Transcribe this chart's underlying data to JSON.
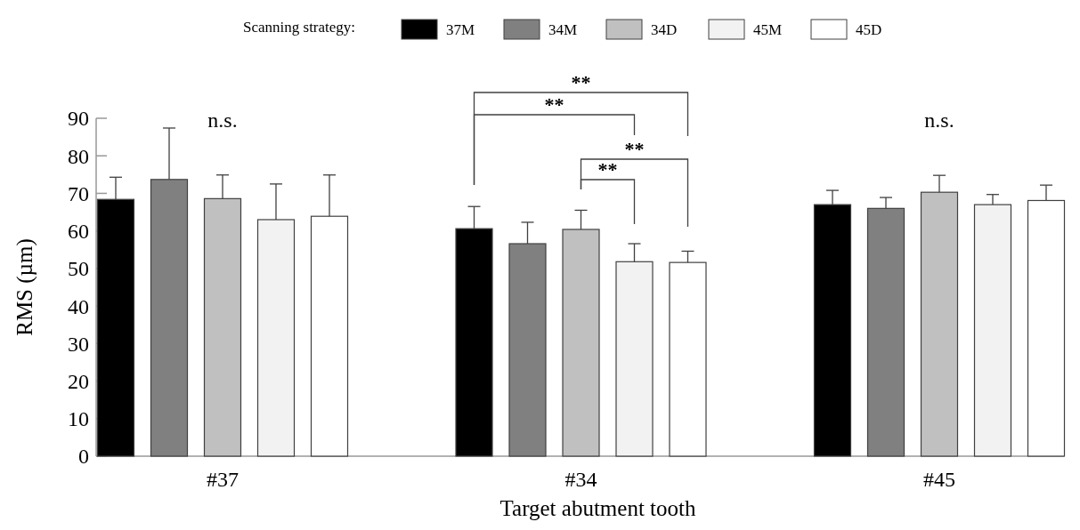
{
  "chart_data": {
    "type": "bar",
    "xlabel": "Target abutment tooth",
    "ylabel": "RMS (µm)",
    "legend_title": "Scanning strategy:",
    "legend": "top",
    "categories": [
      "#37",
      "#34",
      "#45"
    ],
    "ylim": [
      0,
      90
    ],
    "yticks": [
      0,
      10,
      20,
      30,
      40,
      50,
      60,
      70,
      80,
      90
    ],
    "grid": false,
    "series": [
      {
        "name": "37M",
        "color": "#000000",
        "values": [
          68.4,
          60.6,
          67.0
        ],
        "errors": [
          5.9,
          5.9,
          3.8
        ]
      },
      {
        "name": "34M",
        "color": "#808080",
        "values": [
          73.7,
          56.6,
          66.0
        ],
        "errors": [
          13.7,
          5.7,
          2.9
        ]
      },
      {
        "name": "34D",
        "color": "#c0c0c0",
        "values": [
          68.6,
          60.4,
          70.3
        ],
        "errors": [
          6.3,
          5.1,
          4.5
        ]
      },
      {
        "name": "45M",
        "color": "#f2f2f2",
        "values": [
          63.0,
          51.8,
          67.0
        ],
        "errors": [
          9.5,
          4.8,
          2.7
        ]
      },
      {
        "name": "45D",
        "color": "#ffffff",
        "values": [
          63.9,
          51.6,
          68.1
        ],
        "errors": [
          11.0,
          3.0,
          4.1
        ]
      }
    ],
    "annotations": [
      "n.s.",
      "n.s.",
      "**",
      "**",
      "**",
      "**"
    ]
  }
}
